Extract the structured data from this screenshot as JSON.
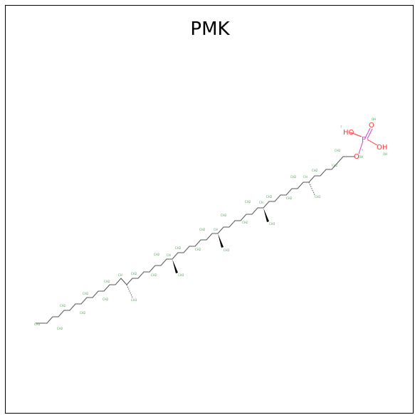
{
  "title": "PMK",
  "colors": {
    "bond": "#555555",
    "carbon_label": "#3fae49",
    "oxygen": "#ff3333",
    "phosphorus": "#cc44cc",
    "frame": "#000000"
  },
  "atoms": {
    "o1": "O",
    "o2": "O",
    "p": "P",
    "ho1": "HO",
    "oh1": "OH",
    "small_marker": "?"
  }
}
